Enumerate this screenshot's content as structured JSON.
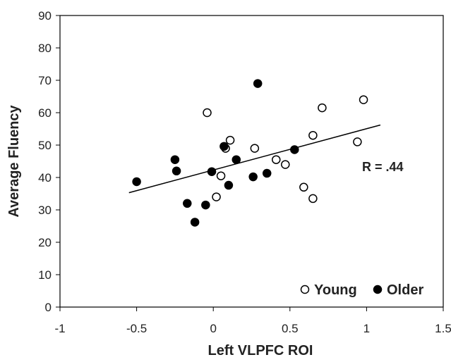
{
  "chart_data": {
    "type": "scatter",
    "xlabel": "Left VLPFC ROI",
    "ylabel": "Average Fluency",
    "xlim": [
      -1,
      1.5
    ],
    "ylim": [
      0,
      90
    ],
    "xticks": [
      -1,
      -0.5,
      0,
      0.5,
      1,
      1.5
    ],
    "xtick_labels": [
      "-1",
      "-0.5",
      "0",
      "0.5",
      "1",
      "1.5"
    ],
    "yticks": [
      0,
      10,
      20,
      30,
      40,
      50,
      60,
      70,
      80,
      90
    ],
    "ytick_labels": [
      "0",
      "10",
      "20",
      "30",
      "40",
      "50",
      "60",
      "70",
      "80",
      "90"
    ],
    "grid": false,
    "legend_position": "bottom-right",
    "series": [
      {
        "name": "Young",
        "marker": "open-circle",
        "color": "#000000",
        "points": [
          [
            -0.04,
            60
          ],
          [
            0.05,
            40.5
          ],
          [
            0.02,
            34
          ],
          [
            0.08,
            49
          ],
          [
            0.11,
            51.5
          ],
          [
            0.27,
            49
          ],
          [
            0.41,
            45.5
          ],
          [
            0.47,
            44
          ],
          [
            0.59,
            37
          ],
          [
            0.65,
            33.5
          ],
          [
            0.65,
            53
          ],
          [
            0.71,
            61.5
          ],
          [
            0.94,
            51
          ],
          [
            0.98,
            64
          ]
        ]
      },
      {
        "name": "Older",
        "marker": "filled-circle",
        "color": "#000000",
        "points": [
          [
            -0.5,
            38.7
          ],
          [
            -0.25,
            45.5
          ],
          [
            -0.24,
            42
          ],
          [
            -0.17,
            32
          ],
          [
            -0.12,
            26.2
          ],
          [
            -0.05,
            31.5
          ],
          [
            -0.01,
            41.8
          ],
          [
            0.07,
            49.6
          ],
          [
            0.1,
            37.6
          ],
          [
            0.15,
            45.5
          ],
          [
            0.26,
            40.2
          ],
          [
            0.29,
            69
          ],
          [
            0.35,
            41.3
          ],
          [
            0.53,
            48.6
          ]
        ]
      }
    ],
    "trendline": {
      "x": [
        -0.55,
        1.09
      ],
      "y": [
        35.3,
        56.2
      ]
    },
    "annotation": "R = .44"
  },
  "legend": {
    "young": "Young",
    "older": "Older"
  }
}
